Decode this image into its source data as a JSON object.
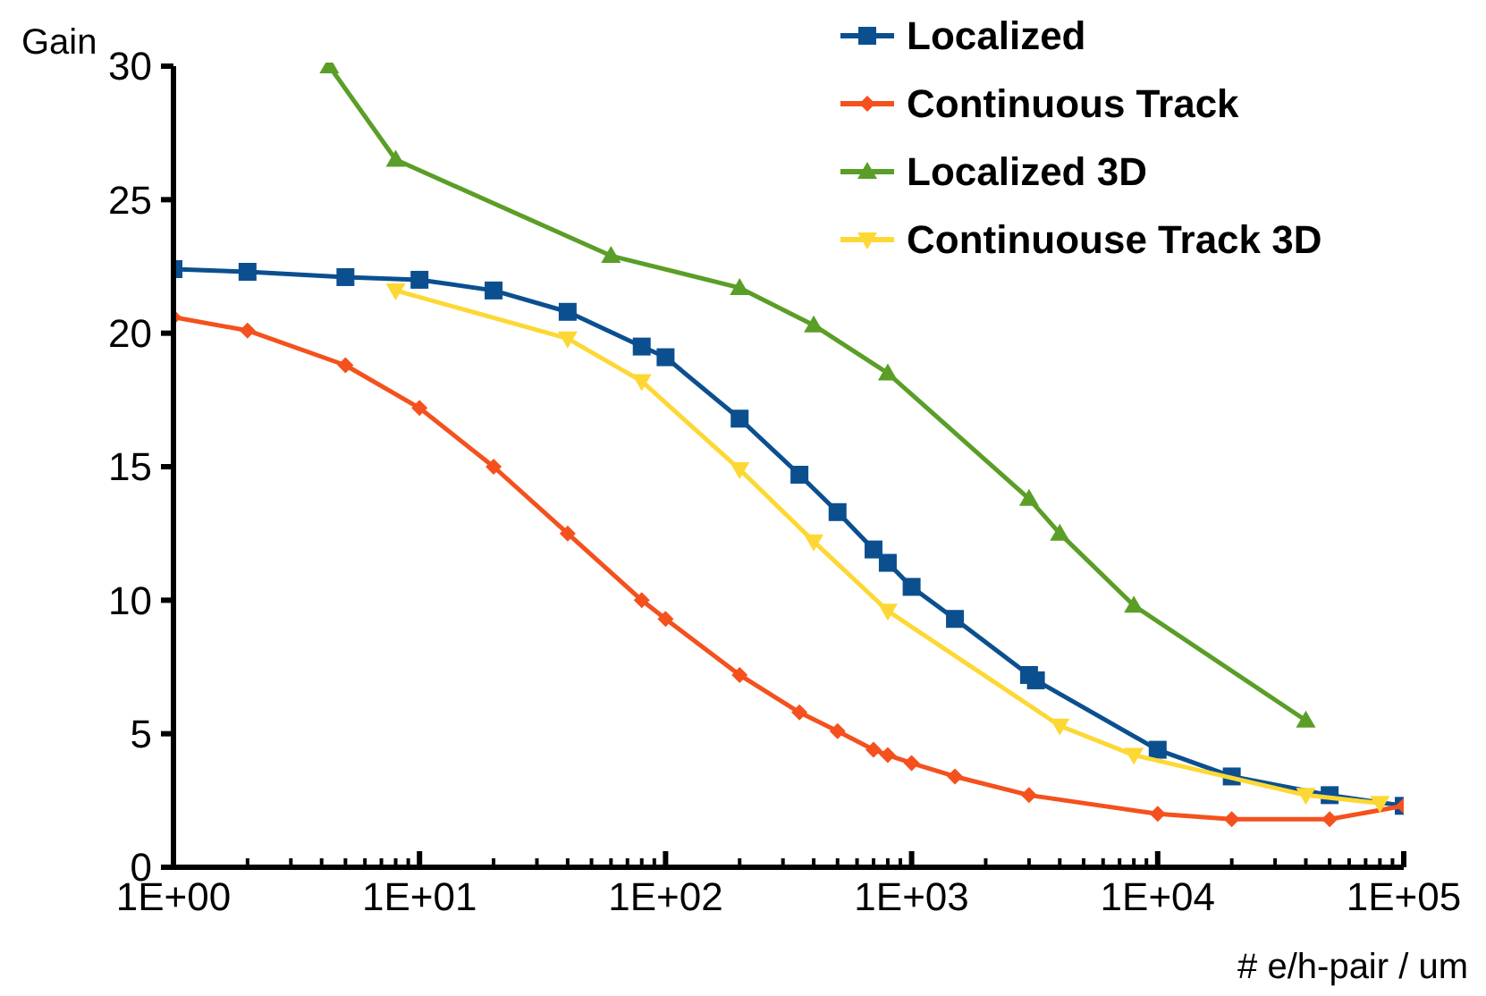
{
  "chart_data": {
    "type": "line",
    "xlabel": "# e/h-pair / um",
    "ylabel": "Gain",
    "log": "x",
    "xlim": [
      1,
      100000
    ],
    "ylim": [
      0,
      30
    ],
    "xticks": [
      {
        "value": 1,
        "label": "1E+00"
      },
      {
        "value": 10,
        "label": "1E+01"
      },
      {
        "value": 100,
        "label": "1E+02"
      },
      {
        "value": 1000,
        "label": "1E+03"
      },
      {
        "value": 10000,
        "label": "1E+04"
      },
      {
        "value": 100000,
        "label": "1E+05"
      }
    ],
    "yticks": [
      0,
      5,
      10,
      15,
      20,
      25,
      30
    ],
    "grid": false,
    "legend": "top right",
    "series": [
      {
        "name": "Localized",
        "color": "#0b4f8f",
        "marker": "square",
        "x": [
          1,
          2,
          5,
          10,
          20,
          40,
          80,
          100,
          200,
          350,
          500,
          700,
          800,
          1000,
          1500,
          3000,
          3200,
          10000,
          20000,
          50000,
          100000
        ],
        "values": [
          22.4,
          22.3,
          22.1,
          22.0,
          21.6,
          20.8,
          19.5,
          19.1,
          16.8,
          14.7,
          13.3,
          11.9,
          11.4,
          10.5,
          9.3,
          7.2,
          7.0,
          4.4,
          3.4,
          2.7,
          2.3
        ]
      },
      {
        "name": "Continuous Track",
        "color": "#f4511e",
        "marker": "diamond",
        "x": [
          1,
          2,
          5,
          10,
          20,
          40,
          80,
          100,
          200,
          350,
          500,
          700,
          800,
          1000,
          1500,
          3000,
          10000,
          20000,
          50000,
          100000
        ],
        "values": [
          20.6,
          20.1,
          18.8,
          17.2,
          15.0,
          12.5,
          10.0,
          9.3,
          7.2,
          5.8,
          5.1,
          4.4,
          4.2,
          3.9,
          3.4,
          2.7,
          2.0,
          1.8,
          1.8,
          2.3
        ]
      },
      {
        "name": "Localized 3D",
        "color": "#5a9e27",
        "marker": "triangle",
        "x": [
          4.3,
          8,
          60,
          200,
          400,
          800,
          3000,
          4000,
          8000,
          40000
        ],
        "values": [
          30,
          26.5,
          22.9,
          21.7,
          20.3,
          18.5,
          13.8,
          12.5,
          9.8,
          5.5
        ]
      },
      {
        "name": "Continuouse Track 3D",
        "color": "#fdd835",
        "marker": "triangle-down",
        "x": [
          8,
          40,
          80,
          200,
          400,
          800,
          4000,
          8000,
          40000,
          80000
        ],
        "values": [
          21.6,
          19.8,
          18.2,
          14.9,
          12.2,
          9.6,
          5.3,
          4.2,
          2.7,
          2.4
        ]
      }
    ]
  }
}
